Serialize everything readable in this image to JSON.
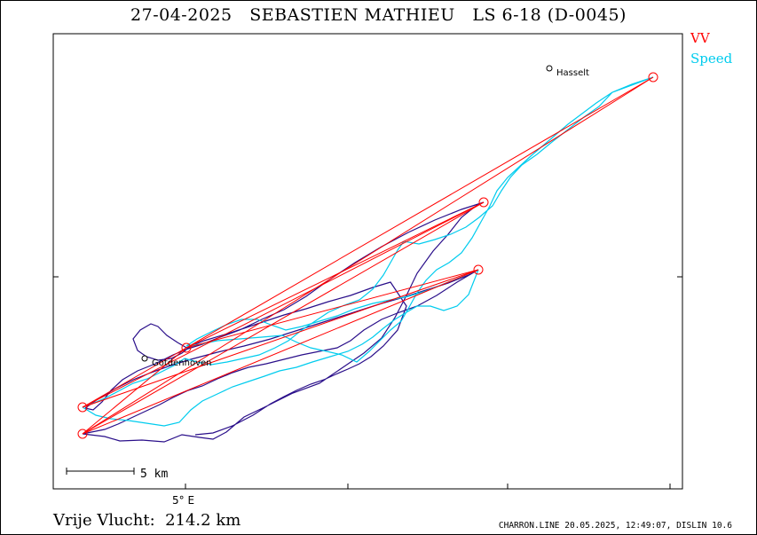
{
  "title": "27-04-2025   SEBASTIEN MATHIEU   LS 6-18 (D-0045)",
  "legend": {
    "vv_label": "VV",
    "vv_color": "#ff0000",
    "speed_label": "Speed",
    "speed_color": "#00ccee"
  },
  "track_color": "#2a0f8a",
  "places": [
    {
      "name": "Hasselt"
    },
    {
      "name": "Gotdenhoven"
    }
  ],
  "axis": {
    "x_tick_label": "5° E"
  },
  "scale_bar": {
    "label": "5 km"
  },
  "footer": {
    "distance_text": "Vrije Vlucht:  214.2 km",
    "credit": "CHARRON.LINE 20.05.2025, 12:49:07, DISLIN 10.6"
  }
}
